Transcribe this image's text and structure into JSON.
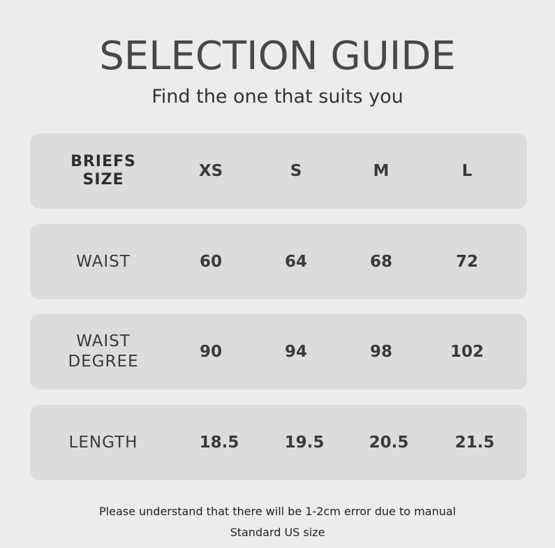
{
  "title": "SELECTION GUIDE",
  "subtitle": "Find the one that suits you",
  "header": {
    "label_line1": "BRIEFS",
    "label_line2": "SIZE",
    "sizes": [
      "XS",
      "S",
      "M",
      "L"
    ]
  },
  "rows": [
    {
      "label_line1": "WAIST",
      "label_line2": "",
      "values": [
        "60",
        "64",
        "68",
        "72"
      ]
    },
    {
      "label_line1": "WAIST",
      "label_line2": "DEGREE",
      "values": [
        "90",
        "94",
        "98",
        "102"
      ]
    },
    {
      "label_line1": "LENGTH",
      "label_line2": "",
      "values": [
        "18.5",
        "19.5",
        "20.5",
        "21.5"
      ]
    }
  ],
  "notes": [
    "Please understand that there will be 1-2cm error due to manual",
    "Standard US size"
  ],
  "colors": {
    "background": "#ececec",
    "card": "#dcdcdc",
    "text": "#333333"
  }
}
